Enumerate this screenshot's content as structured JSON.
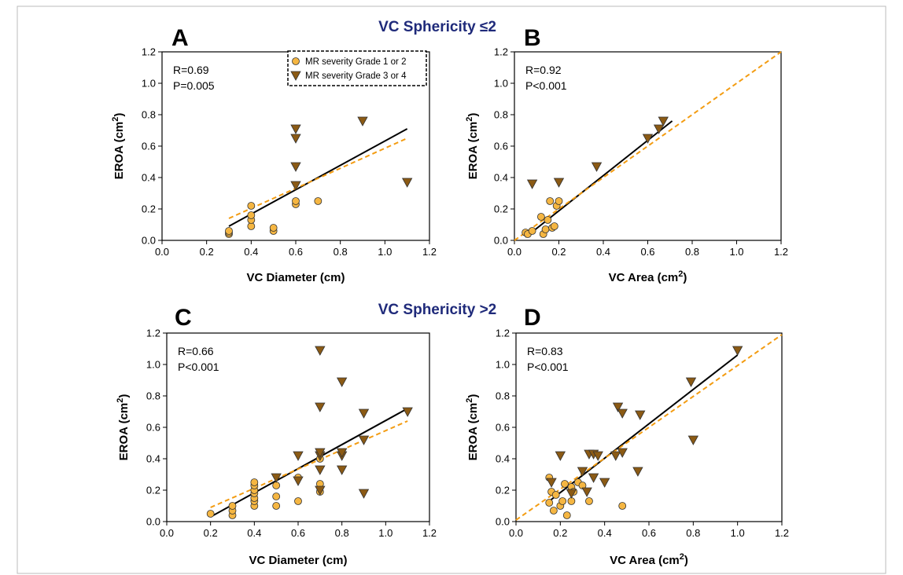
{
  "figure": {
    "group_titles": [
      "VC Sphericity ≤2",
      "VC Sphericity >2"
    ],
    "legend": {
      "items": [
        {
          "label": "MR severity Grade 1 or 2",
          "marker": "circle"
        },
        {
          "label": "MR severity Grade 3 or 4",
          "marker": "triangle-down"
        }
      ]
    }
  },
  "colors": {
    "circle_fill": "#f5b642",
    "triangle_fill": "#8b5a14",
    "fit_solid": "#000000",
    "fit_dashed": "#f39c12",
    "group_title": "#1f2a7a"
  },
  "chart_data": [
    {
      "type": "scatter",
      "panel_letter": "A",
      "xlabel": "VC Diameter (cm)",
      "ylabel": "EROA (cm²)",
      "xlim": [
        0,
        1.2
      ],
      "ylim": [
        0,
        1.2
      ],
      "xticks": [
        "0.0",
        "0.2",
        "0.4",
        "0.6",
        "0.8",
        "1.0",
        "1.2"
      ],
      "yticks": [
        "0.0",
        "0.2",
        "0.4",
        "0.6",
        "0.8",
        "1.0",
        "1.2"
      ],
      "stats": [
        "R=0.69",
        "P=0.005"
      ],
      "has_legend": true,
      "series": [
        {
          "name": "MR severity Grade 1 or 2",
          "marker": "circle",
          "x": [
            0.3,
            0.3,
            0.3,
            0.4,
            0.4,
            0.4,
            0.4,
            0.5,
            0.5,
            0.6,
            0.6,
            0.7
          ],
          "y": [
            0.04,
            0.05,
            0.06,
            0.09,
            0.13,
            0.16,
            0.22,
            0.06,
            0.08,
            0.23,
            0.25,
            0.25
          ]
        },
        {
          "name": "MR severity Grade 3 or 4",
          "marker": "triangle-down",
          "x": [
            0.6,
            0.6,
            0.6,
            0.6,
            0.9,
            1.1
          ],
          "y": [
            0.35,
            0.47,
            0.65,
            0.71,
            0.76,
            0.37
          ]
        }
      ],
      "fits": [
        {
          "style": "solid",
          "x": [
            0.3,
            1.1
          ],
          "y": [
            0.09,
            0.71
          ]
        },
        {
          "style": "dashed",
          "x": [
            0.3,
            1.1
          ],
          "y": [
            0.14,
            0.65
          ]
        }
      ]
    },
    {
      "type": "scatter",
      "panel_letter": "B",
      "xlabel": "VC Area (cm²)",
      "ylabel": "EROA (cm²)",
      "xlim": [
        0,
        1.2
      ],
      "ylim": [
        0,
        1.2
      ],
      "xticks": [
        "0.0",
        "0.2",
        "0.4",
        "0.6",
        "0.8",
        "1.0",
        "1.2"
      ],
      "yticks": [
        "0.0",
        "0.2",
        "0.4",
        "0.6",
        "0.8",
        "1.0",
        "1.2"
      ],
      "stats": [
        "R=0.92",
        "P<0.001"
      ],
      "has_legend": false,
      "series": [
        {
          "name": "MR severity Grade 1 or 2",
          "marker": "circle",
          "x": [
            0.05,
            0.06,
            0.08,
            0.12,
            0.13,
            0.14,
            0.15,
            0.16,
            0.17,
            0.18,
            0.19,
            0.2
          ],
          "y": [
            0.05,
            0.04,
            0.06,
            0.15,
            0.04,
            0.07,
            0.13,
            0.25,
            0.08,
            0.09,
            0.22,
            0.25
          ]
        },
        {
          "name": "MR severity Grade 3 or 4",
          "marker": "triangle-down",
          "x": [
            0.08,
            0.2,
            0.37,
            0.6,
            0.65,
            0.67
          ],
          "y": [
            0.36,
            0.37,
            0.47,
            0.65,
            0.71,
            0.76
          ]
        }
      ],
      "fits": [
        {
          "style": "solid",
          "x": [
            0.05,
            0.71
          ],
          "y": [
            0.02,
            0.76
          ]
        },
        {
          "style": "dashed",
          "x": [
            0.0,
            1.2
          ],
          "y": [
            0.0,
            1.2
          ]
        }
      ]
    },
    {
      "type": "scatter",
      "panel_letter": "C",
      "xlabel": "VC Diameter (cm)",
      "ylabel": "EROA (cm²)",
      "xlim": [
        0,
        1.2
      ],
      "ylim": [
        0,
        1.2
      ],
      "xticks": [
        "0.0",
        "0.2",
        "0.4",
        "0.6",
        "0.8",
        "1.0",
        "1.2"
      ],
      "yticks": [
        "0.0",
        "0.2",
        "0.4",
        "0.6",
        "0.8",
        "1.0",
        "1.2"
      ],
      "stats": [
        "R=0.66",
        "P<0.001"
      ],
      "has_legend": false,
      "series": [
        {
          "name": "MR severity Grade 1 or 2",
          "marker": "circle",
          "x": [
            0.2,
            0.3,
            0.3,
            0.3,
            0.4,
            0.4,
            0.4,
            0.4,
            0.4,
            0.4,
            0.4,
            0.5,
            0.5,
            0.5,
            0.6,
            0.6,
            0.7,
            0.7,
            0.7
          ],
          "y": [
            0.05,
            0.04,
            0.07,
            0.1,
            0.1,
            0.13,
            0.15,
            0.18,
            0.2,
            0.23,
            0.25,
            0.1,
            0.16,
            0.23,
            0.13,
            0.28,
            0.19,
            0.24,
            0.4
          ]
        },
        {
          "name": "MR severity Grade 3 or 4",
          "marker": "triangle-down",
          "x": [
            0.5,
            0.6,
            0.6,
            0.7,
            0.7,
            0.7,
            0.7,
            0.7,
            0.7,
            0.8,
            0.8,
            0.8,
            0.8,
            0.9,
            0.9,
            0.9,
            1.1
          ],
          "y": [
            0.28,
            0.26,
            0.42,
            0.2,
            0.33,
            0.42,
            0.44,
            0.73,
            1.09,
            0.33,
            0.42,
            0.44,
            0.89,
            0.18,
            0.52,
            0.69,
            0.7
          ]
        }
      ],
      "fits": [
        {
          "style": "solid",
          "x": [
            0.2,
            1.1
          ],
          "y": [
            0.03,
            0.72
          ]
        },
        {
          "style": "dashed",
          "x": [
            0.2,
            1.1
          ],
          "y": [
            0.09,
            0.64
          ]
        }
      ]
    },
    {
      "type": "scatter",
      "panel_letter": "D",
      "xlabel": "VC Area (cm²)",
      "ylabel": "EROA (cm²)",
      "xlim": [
        0,
        1.2
      ],
      "ylim": [
        0,
        1.2
      ],
      "xticks": [
        "0.0",
        "0.2",
        "0.4",
        "0.6",
        "0.8",
        "1.0",
        "1.2"
      ],
      "yticks": [
        "0.0",
        "0.2",
        "0.4",
        "0.6",
        "0.8",
        "1.0",
        "1.2"
      ],
      "stats": [
        "R=0.83",
        "P<0.001"
      ],
      "has_legend": false,
      "series": [
        {
          "name": "MR severity Grade 1 or 2",
          "marker": "circle",
          "x": [
            0.15,
            0.15,
            0.16,
            0.17,
            0.18,
            0.2,
            0.21,
            0.22,
            0.23,
            0.25,
            0.25,
            0.26,
            0.28,
            0.3,
            0.33,
            0.48
          ],
          "y": [
            0.28,
            0.12,
            0.19,
            0.07,
            0.17,
            0.1,
            0.13,
            0.24,
            0.04,
            0.13,
            0.22,
            0.19,
            0.25,
            0.23,
            0.13,
            0.1
          ]
        },
        {
          "name": "MR severity Grade 3 or 4",
          "marker": "triangle-down",
          "x": [
            0.16,
            0.2,
            0.25,
            0.3,
            0.32,
            0.33,
            0.35,
            0.35,
            0.37,
            0.4,
            0.45,
            0.46,
            0.48,
            0.48,
            0.55,
            0.56,
            0.79,
            0.8,
            1.0
          ],
          "y": [
            0.25,
            0.42,
            0.18,
            0.32,
            0.19,
            0.43,
            0.28,
            0.43,
            0.42,
            0.25,
            0.42,
            0.73,
            0.44,
            0.69,
            0.32,
            0.68,
            0.89,
            0.52,
            1.09
          ]
        }
      ],
      "fits": [
        {
          "style": "solid",
          "x": [
            0.15,
            1.0
          ],
          "y": [
            0.13,
            1.06
          ]
        },
        {
          "style": "dashed",
          "x": [
            0.0,
            1.2
          ],
          "y": [
            0.01,
            1.19
          ]
        }
      ]
    }
  ]
}
